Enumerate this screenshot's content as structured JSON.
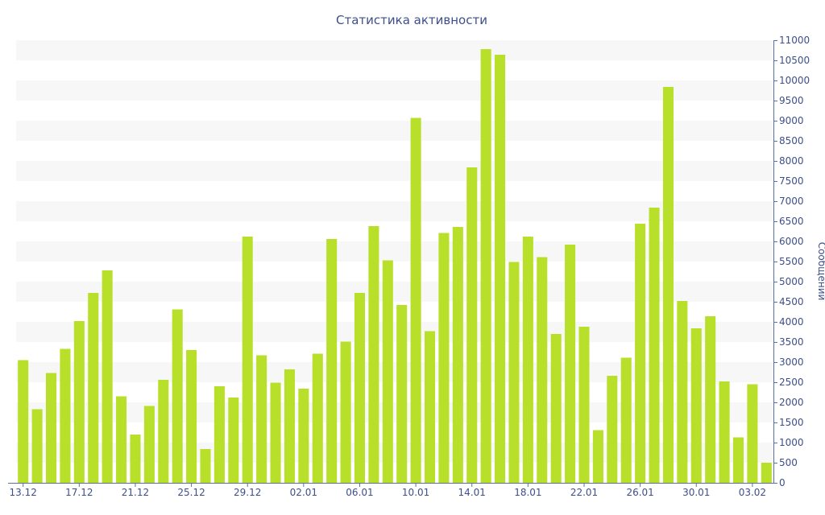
{
  "colors": {
    "bar": "#b8e02a",
    "band": "#f7f7f7",
    "axis": "#5a6fa8",
    "text": "#3d4f8a"
  },
  "chart_data": {
    "type": "bar",
    "title": "Статистика активности",
    "xlabel": "",
    "ylabel": "Сообщений",
    "ylim": [
      0,
      11000
    ],
    "y_ticks": [
      0,
      500,
      1000,
      1500,
      2000,
      2500,
      3000,
      3500,
      4000,
      4500,
      5000,
      5500,
      6000,
      6500,
      7000,
      7500,
      8000,
      8500,
      9000,
      9500,
      10000,
      10500,
      11000
    ],
    "y_axis_position": "right",
    "grid": "alternating horizontal bands",
    "legend": "none",
    "x_tick_labels": [
      {
        "index": 0,
        "label": "13.12"
      },
      {
        "index": 4,
        "label": "17.12"
      },
      {
        "index": 8,
        "label": "21.12"
      },
      {
        "index": 12,
        "label": "25.12"
      },
      {
        "index": 16,
        "label": "29.12"
      },
      {
        "index": 20,
        "label": "02.01"
      },
      {
        "index": 24,
        "label": "06.01"
      },
      {
        "index": 28,
        "label": "10.01"
      },
      {
        "index": 32,
        "label": "14.01"
      },
      {
        "index": 36,
        "label": "18.01"
      },
      {
        "index": 40,
        "label": "22.01"
      },
      {
        "index": 44,
        "label": "26.01"
      },
      {
        "index": 48,
        "label": "30.01"
      },
      {
        "index": 52,
        "label": "03.02"
      }
    ],
    "categories": [
      "13.12",
      "14.12",
      "15.12",
      "16.12",
      "17.12",
      "18.12",
      "19.12",
      "20.12",
      "21.12",
      "22.12",
      "23.12",
      "24.12",
      "25.12",
      "26.12",
      "27.12",
      "28.12",
      "29.12",
      "30.12",
      "31.12",
      "01.01",
      "02.01",
      "03.01",
      "04.01",
      "05.01",
      "06.01",
      "07.01",
      "08.01",
      "09.01",
      "10.01",
      "11.01",
      "12.01",
      "13.01",
      "14.01",
      "15.01",
      "16.01",
      "17.01",
      "18.01",
      "19.01",
      "20.01",
      "21.01",
      "22.01",
      "23.01",
      "24.01",
      "25.01",
      "26.01",
      "27.01",
      "28.01",
      "29.01",
      "30.01",
      "31.01",
      "01.02",
      "02.02",
      "03.02",
      "04.02"
    ],
    "values": [
      3050,
      1830,
      2730,
      3330,
      4020,
      4720,
      5280,
      2150,
      1200,
      1910,
      2560,
      4310,
      3300,
      840,
      2400,
      2120,
      6120,
      3170,
      2490,
      2820,
      2340,
      3210,
      6060,
      3510,
      4720,
      6380,
      5530,
      4420,
      9070,
      3770,
      6210,
      6360,
      7840,
      10780,
      10640,
      5490,
      6120,
      5610,
      3700,
      5920,
      3880,
      1310,
      2660,
      3110,
      6440,
      6840,
      9840,
      4520,
      3840,
      4140,
      2520,
      1130,
      2450,
      500
    ]
  }
}
